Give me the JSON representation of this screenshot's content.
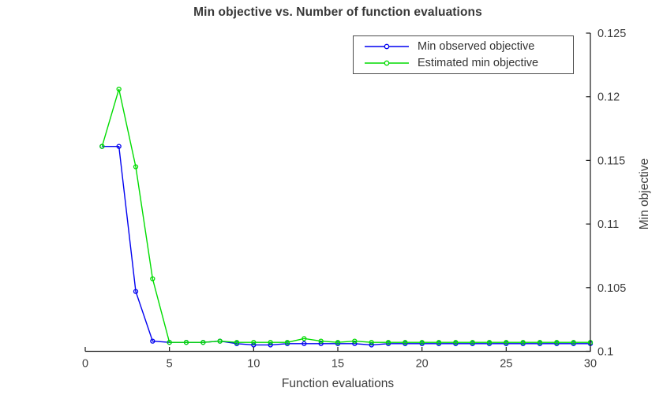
{
  "figure": {
    "title": "Min objective vs. Number of function evaluations",
    "xlabel": "Function evaluations",
    "ylabel": "Min objective"
  },
  "legend": {
    "position": "top-right-inside",
    "items": [
      {
        "label": "Min observed objective",
        "color": "#0000f0"
      },
      {
        "label": "Estimated min objective",
        "color": "#00dc00"
      }
    ]
  },
  "chart_data": {
    "type": "line",
    "title": "Min objective vs. Number of function evaluations",
    "xlabel": "Function evaluations",
    "ylabel": "Min objective",
    "xlim": [
      0,
      30
    ],
    "ylim": [
      0.1,
      0.125
    ],
    "grid": false,
    "y_axis_location": "right",
    "marker": "open-circle",
    "x_ticks": {
      "values": [
        0,
        5,
        10,
        15,
        20,
        25,
        30
      ],
      "labels": [
        "0",
        "5",
        "10",
        "15",
        "20",
        "25",
        "30"
      ]
    },
    "y_ticks": {
      "values": [
        0.1,
        0.105,
        0.11,
        0.115,
        0.12,
        0.125
      ],
      "labels": [
        "0.1",
        "0.105",
        "0.11",
        "0.115",
        "0.12",
        "0.125"
      ]
    },
    "x": [
      1,
      2,
      3,
      4,
      5,
      6,
      7,
      8,
      9,
      10,
      11,
      12,
      13,
      14,
      15,
      16,
      17,
      18,
      19,
      20,
      21,
      22,
      23,
      24,
      25,
      26,
      27,
      28,
      29,
      30
    ],
    "series": [
      {
        "name": "Min observed objective",
        "color": "#0000f0",
        "values": [
          0.1161,
          0.1161,
          0.1047,
          0.1008,
          0.1007,
          0.1007,
          0.1007,
          0.1008,
          0.1006,
          0.1005,
          0.1005,
          0.1006,
          0.1006,
          0.1006,
          0.1006,
          0.1006,
          0.1005,
          0.1006,
          0.1006,
          0.1006,
          0.1006,
          0.1006,
          0.1006,
          0.1006,
          0.1006,
          0.1006,
          0.1006,
          0.1006,
          0.1006,
          0.1006
        ]
      },
      {
        "name": "Estimated min objective",
        "color": "#00dc00",
        "values": [
          0.1161,
          0.1206,
          0.1145,
          0.1057,
          0.1007,
          0.1007,
          0.1007,
          0.1008,
          0.1007,
          0.1007,
          0.1007,
          0.1007,
          0.101,
          0.1008,
          0.1007,
          0.1008,
          0.1007,
          0.1007,
          0.1007,
          0.1007,
          0.1007,
          0.1007,
          0.1007,
          0.1007,
          0.1007,
          0.1007,
          0.1007,
          0.1007,
          0.1007,
          0.1007
        ]
      }
    ]
  }
}
